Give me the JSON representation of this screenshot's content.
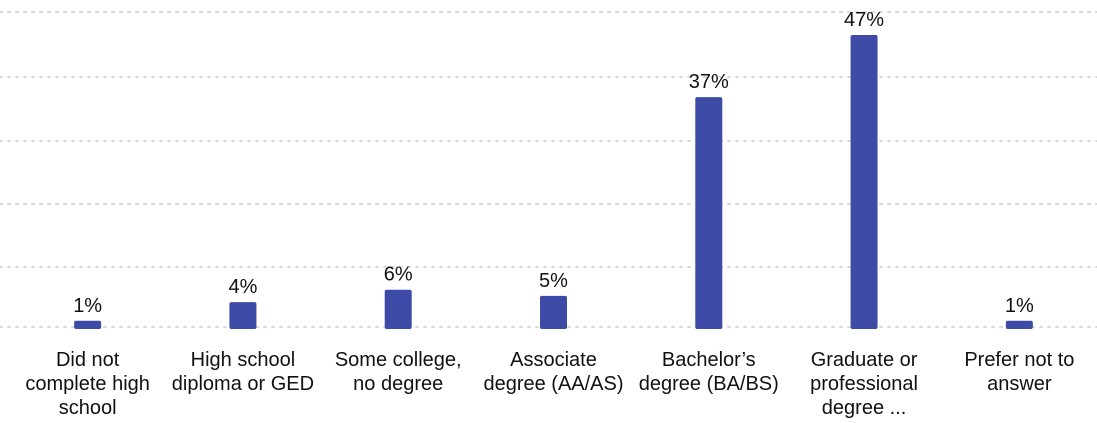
{
  "chart_data": {
    "type": "bar",
    "title": "",
    "xlabel": "",
    "ylabel": "",
    "ylim": [
      0,
      47
    ],
    "grid": true,
    "bar_color": "#3d4aa6",
    "grid_color": "#d9d9d9",
    "text_color": "#111111",
    "value_suffix": "%",
    "categories": [
      "Did not complete high school",
      "High school diploma or GED",
      "Some college, no degree",
      "Associate degree (AA/AS)",
      "Bachelor’s degree (BA/BS)",
      "Graduate or professional degree ...",
      "Prefer not to answer"
    ],
    "values": [
      1,
      4,
      6,
      5,
      37,
      47,
      1
    ],
    "value_labels": [
      "1%",
      "4%",
      "6%",
      "5%",
      "37%",
      "47%",
      "1%"
    ]
  }
}
